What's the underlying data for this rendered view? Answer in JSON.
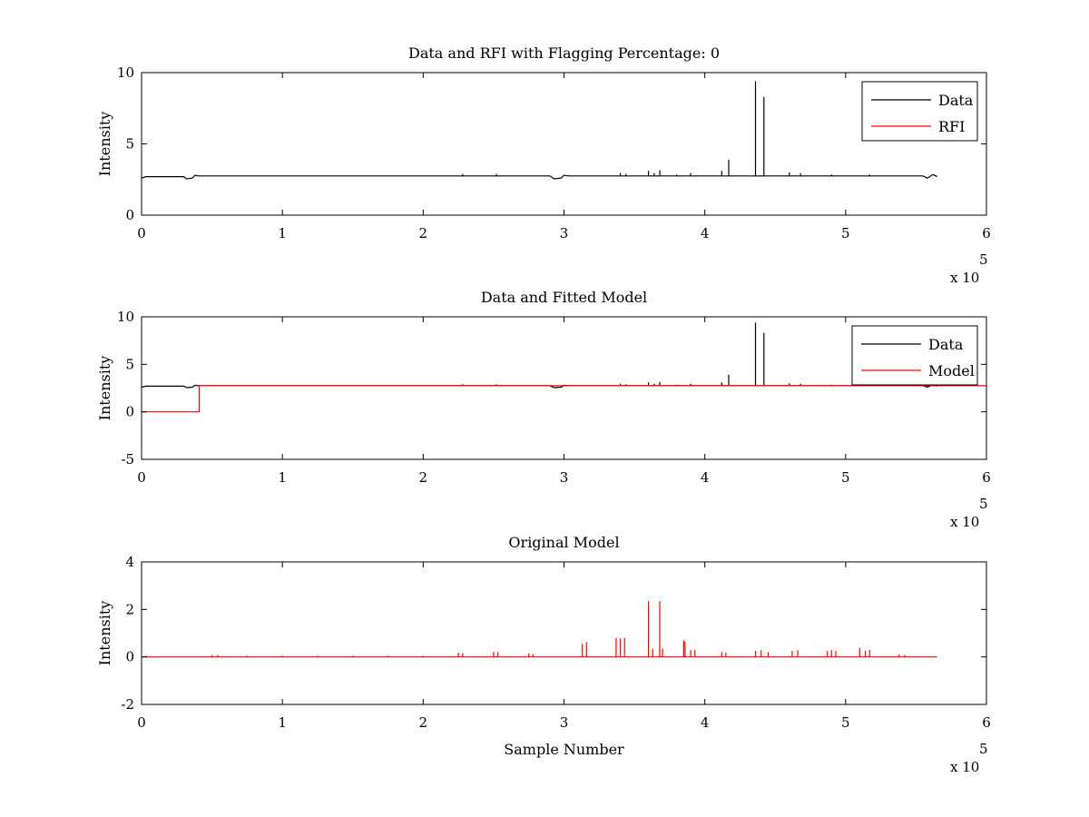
{
  "chart_data": [
    {
      "type": "line",
      "title": "Data and RFI with Flagging Percentage: 0",
      "xlabel": "",
      "ylabel": "Intensity",
      "xlim": [
        0,
        6
      ],
      "ylim": [
        0,
        10
      ],
      "x_multiplier": "x 10",
      "x_multiplier_exponent": "5",
      "xticks": [
        "0",
        "1",
        "2",
        "3",
        "4",
        "5",
        "6"
      ],
      "yticks": [
        "0",
        "5",
        "10"
      ],
      "xtick_values": [
        0,
        1,
        2,
        3,
        4,
        5,
        6
      ],
      "ytick_values": [
        0,
        5,
        10
      ],
      "grid": false,
      "legend_position": "top-right",
      "series": [
        {
          "name": "Data",
          "color": "#000000",
          "baseline": [
            [
              0,
              2.6
            ],
            [
              0.03,
              2.7
            ],
            [
              0.3,
              2.7
            ],
            [
              0.32,
              2.55
            ],
            [
              0.36,
              2.6
            ],
            [
              0.38,
              2.8
            ],
            [
              0.4,
              2.75
            ],
            [
              2.9,
              2.75
            ],
            [
              2.93,
              2.55
            ],
            [
              2.98,
              2.6
            ],
            [
              3.0,
              2.8
            ],
            [
              3.03,
              2.75
            ],
            [
              5.55,
              2.75
            ],
            [
              5.58,
              2.6
            ],
            [
              5.62,
              2.85
            ],
            [
              5.65,
              2.7
            ]
          ],
          "spikes": [
            [
              2.28,
              2.9
            ],
            [
              2.52,
              2.9
            ],
            [
              3.4,
              2.95
            ],
            [
              3.44,
              2.9
            ],
            [
              3.6,
              3.1
            ],
            [
              3.64,
              2.95
            ],
            [
              3.68,
              3.15
            ],
            [
              3.8,
              2.85
            ],
            [
              3.9,
              2.95
            ],
            [
              4.12,
              3.1
            ],
            [
              4.17,
              3.9
            ],
            [
              4.36,
              9.4
            ],
            [
              4.42,
              8.3
            ],
            [
              4.6,
              3.0
            ],
            [
              4.68,
              2.95
            ],
            [
              4.9,
              2.85
            ],
            [
              5.17,
              2.85
            ]
          ]
        },
        {
          "name": "RFI",
          "color": "#ff0000",
          "baseline": [],
          "spikes": []
        }
      ]
    },
    {
      "type": "line",
      "title": "Data and Fitted Model",
      "xlabel": "",
      "ylabel": "Intensity",
      "xlim": [
        0,
        6
      ],
      "ylim": [
        -5,
        10
      ],
      "x_multiplier": "x 10",
      "x_multiplier_exponent": "5",
      "xticks": [
        "0",
        "1",
        "2",
        "3",
        "4",
        "5",
        "6"
      ],
      "yticks": [
        "-5",
        "0",
        "5",
        "10"
      ],
      "xtick_values": [
        0,
        1,
        2,
        3,
        4,
        5,
        6
      ],
      "ytick_values": [
        -5,
        0,
        5,
        10
      ],
      "grid": false,
      "legend_position": "top-right",
      "series": [
        {
          "name": "Data",
          "color": "#000000",
          "baseline": [
            [
              0,
              2.6
            ],
            [
              0.03,
              2.7
            ],
            [
              0.3,
              2.7
            ],
            [
              0.32,
              2.55
            ],
            [
              0.36,
              2.6
            ],
            [
              0.38,
              2.8
            ],
            [
              0.4,
              2.75
            ],
            [
              2.9,
              2.75
            ],
            [
              2.93,
              2.55
            ],
            [
              2.98,
              2.6
            ],
            [
              3.0,
              2.8
            ],
            [
              3.03,
              2.75
            ],
            [
              5.55,
              2.75
            ],
            [
              5.58,
              2.6
            ],
            [
              5.62,
              2.85
            ],
            [
              5.65,
              2.7
            ]
          ],
          "spikes": [
            [
              2.28,
              2.9
            ],
            [
              2.52,
              2.9
            ],
            [
              3.4,
              2.95
            ],
            [
              3.44,
              2.9
            ],
            [
              3.6,
              3.1
            ],
            [
              3.64,
              2.95
            ],
            [
              3.68,
              3.15
            ],
            [
              3.8,
              2.85
            ],
            [
              3.9,
              2.95
            ],
            [
              4.12,
              3.1
            ],
            [
              4.17,
              3.9
            ],
            [
              4.36,
              9.4
            ],
            [
              4.42,
              8.3
            ],
            [
              4.6,
              3.0
            ],
            [
              4.68,
              2.95
            ],
            [
              4.9,
              2.85
            ],
            [
              5.17,
              2.85
            ]
          ]
        },
        {
          "name": "Model",
          "color": "#ff0000",
          "baseline": [
            [
              0,
              0
            ],
            [
              0.41,
              0
            ],
            [
              0.41,
              2.75
            ],
            [
              6,
              2.75
            ]
          ],
          "spikes": []
        }
      ]
    },
    {
      "type": "line",
      "title": "Original Model",
      "xlabel": "Sample Number",
      "ylabel": "Intensity",
      "xlim": [
        0,
        6
      ],
      "ylim": [
        -2,
        4
      ],
      "x_multiplier": "x 10",
      "x_multiplier_exponent": "5",
      "xticks": [
        "0",
        "1",
        "2",
        "3",
        "4",
        "5",
        "6"
      ],
      "yticks": [
        "-2",
        "0",
        "2",
        "4"
      ],
      "xtick_values": [
        0,
        1,
        2,
        3,
        4,
        5,
        6
      ],
      "ytick_values": [
        -2,
        0,
        2,
        4
      ],
      "grid": false,
      "legend_position": "none",
      "series": [
        {
          "color": "#ff0000",
          "baseline": [
            [
              0,
              0
            ],
            [
              5.65,
              0
            ]
          ],
          "spikes": [
            [
              0.03,
              0.05
            ],
            [
              0.5,
              0.08
            ],
            [
              0.54,
              0.08
            ],
            [
              0.75,
              0.05
            ],
            [
              1.0,
              0.05
            ],
            [
              1.25,
              0.05
            ],
            [
              1.5,
              0.05
            ],
            [
              1.75,
              0.05
            ],
            [
              2.0,
              0.05
            ],
            [
              2.25,
              0.18
            ],
            [
              2.28,
              0.15
            ],
            [
              2.5,
              0.22
            ],
            [
              2.53,
              0.2
            ],
            [
              2.75,
              0.15
            ],
            [
              2.78,
              0.12
            ],
            [
              3.13,
              0.55
            ],
            [
              3.16,
              0.62
            ],
            [
              3.37,
              0.8
            ],
            [
              3.4,
              0.78
            ],
            [
              3.43,
              0.8
            ],
            [
              3.6,
              2.35
            ],
            [
              3.63,
              0.35
            ],
            [
              3.68,
              2.35
            ],
            [
              3.7,
              0.35
            ],
            [
              3.85,
              0.7
            ],
            [
              3.86,
              0.65
            ],
            [
              3.9,
              0.3
            ],
            [
              3.93,
              0.3
            ],
            [
              4.12,
              0.2
            ],
            [
              4.15,
              0.18
            ],
            [
              4.36,
              0.25
            ],
            [
              4.4,
              0.28
            ],
            [
              4.45,
              0.2
            ],
            [
              4.62,
              0.25
            ],
            [
              4.66,
              0.28
            ],
            [
              4.87,
              0.25
            ],
            [
              4.9,
              0.28
            ],
            [
              4.93,
              0.25
            ],
            [
              5.1,
              0.38
            ],
            [
              5.14,
              0.25
            ],
            [
              5.17,
              0.3
            ],
            [
              5.38,
              0.1
            ],
            [
              5.42,
              0.08
            ]
          ]
        }
      ]
    }
  ]
}
